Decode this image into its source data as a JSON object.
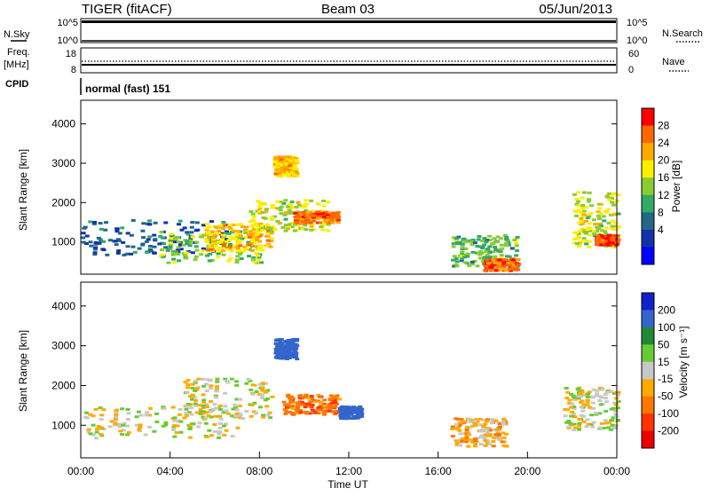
{
  "header": {
    "radar": "TIGER (fitACF)",
    "beam": "Beam 03",
    "date": "05/Jun/2013"
  },
  "nsky_panel": {
    "left_label": "N.Sky",
    "right_label": "N.Search",
    "left_ticks": [
      "10^5",
      "10^0"
    ],
    "right_ticks": [
      "10^5",
      "10^0"
    ]
  },
  "freq_panel": {
    "left_label_1": "Freq.",
    "left_label_2": "[MHz]",
    "right_label": "Nave",
    "left_ticks": [
      "18",
      "8"
    ],
    "right_ticks": [
      "60",
      "0"
    ]
  },
  "cpid_panel": {
    "label": "CPID",
    "value": "normal (fast) 151"
  },
  "chart_data": [
    {
      "type": "heatmap",
      "name": "power",
      "ylabel": "Slant Range [km]",
      "ylim": [
        180,
        4600
      ],
      "yticks": [
        "4000",
        "3000",
        "2000",
        "1000"
      ],
      "xlim": [
        0,
        24
      ],
      "colorbar": {
        "label": "Power [dB]",
        "ticks": [
          "28",
          "24",
          "20",
          "16",
          "12",
          "8",
          "4"
        ],
        "colors": [
          "#ff0000",
          "#ff6600",
          "#ffaa00",
          "#ffee00",
          "#88cc33",
          "#33aa66",
          "#226688",
          "#1133aa",
          "#0000ff"
        ]
      },
      "echo_regions": [
        {
          "t0": 0.0,
          "t1": 6.5,
          "r0": 700,
          "r1": 1600,
          "level": 8
        },
        {
          "t0": 3.5,
          "t1": 8.0,
          "r0": 500,
          "r1": 1300,
          "level": 16
        },
        {
          "t0": 5.5,
          "t1": 8.5,
          "r0": 800,
          "r1": 1500,
          "level": 22
        },
        {
          "t0": 7.5,
          "t1": 11.0,
          "r0": 1300,
          "r1": 2100,
          "level": 18
        },
        {
          "t0": 8.6,
          "t1": 9.6,
          "r0": 2700,
          "r1": 3200,
          "level": 22
        },
        {
          "t0": 9.5,
          "t1": 11.5,
          "r0": 1500,
          "r1": 1800,
          "level": 26
        },
        {
          "t0": 16.5,
          "t1": 19.5,
          "r0": 400,
          "r1": 1200,
          "level": 14
        },
        {
          "t0": 18.0,
          "t1": 19.5,
          "r0": 300,
          "r1": 600,
          "level": 26
        },
        {
          "t0": 22.0,
          "t1": 24.0,
          "r0": 900,
          "r1": 2300,
          "level": 18
        },
        {
          "t0": 23.0,
          "t1": 24.0,
          "r0": 950,
          "r1": 1200,
          "level": 28
        }
      ]
    },
    {
      "type": "heatmap",
      "name": "velocity",
      "ylabel": "Slant Range [km]",
      "ylim": [
        180,
        4600
      ],
      "yticks": [
        "4000",
        "3000",
        "2000",
        "1000"
      ],
      "xlim": [
        0,
        24
      ],
      "xticks": [
        "00:00",
        "04:00",
        "08:00",
        "12:00",
        "16:00",
        "20:00",
        "00:00"
      ],
      "xlabel": "Time UT",
      "colorbar": {
        "label": "Velocity [m s⁻¹]",
        "ticks": [
          "200",
          "100",
          "50",
          "15",
          "-15",
          "-50",
          "-100",
          "-200"
        ],
        "colors": [
          "#1122cc",
          "#3366cc",
          "#228833",
          "#66cc33",
          "#c8c8c8",
          "#ffaa00",
          "#ff7700",
          "#ff3300",
          "#ee0000"
        ]
      },
      "echo_regions": [
        {
          "t0": 0.0,
          "t1": 7.0,
          "r0": 700,
          "r1": 1500,
          "level": 0
        },
        {
          "t0": 4.5,
          "t1": 8.5,
          "r0": 1200,
          "r1": 2200,
          "level": 0
        },
        {
          "t0": 8.6,
          "t1": 9.6,
          "r0": 2700,
          "r1": 3200,
          "level": 150
        },
        {
          "t0": 9.0,
          "t1": 11.5,
          "r0": 1300,
          "r1": 1800,
          "level": -80
        },
        {
          "t0": 11.5,
          "t1": 12.5,
          "r0": 1200,
          "r1": 1500,
          "level": 150
        },
        {
          "t0": 16.5,
          "t1": 19.0,
          "r0": 500,
          "r1": 1200,
          "level": -30
        },
        {
          "t0": 21.5,
          "t1": 24.0,
          "r0": 900,
          "r1": 2000,
          "level": 0
        }
      ]
    }
  ]
}
